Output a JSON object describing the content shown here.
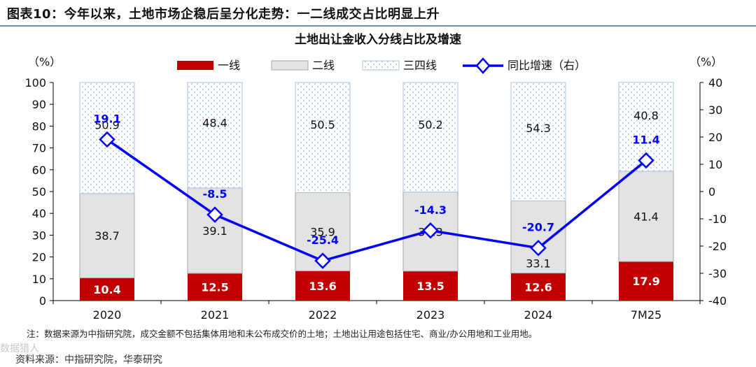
{
  "header": {
    "figure_label": "图表10：",
    "title": "今年以来，土地市场企稳后呈分化走势：一二线成交占比明显上升"
  },
  "chart_data": {
    "type": "bar",
    "stacked": true,
    "title": "土地出让金收入分线占比及增速",
    "categories": [
      "2020",
      "2021",
      "2022",
      "2023",
      "2024",
      "7M25"
    ],
    "series": [
      {
        "name": "一线",
        "values": [
          10.4,
          12.5,
          13.6,
          13.5,
          12.6,
          17.9
        ],
        "color": "#c00000",
        "pattern": "solid"
      },
      {
        "name": "二线",
        "values": [
          38.7,
          39.1,
          35.9,
          36.3,
          33.1,
          41.4
        ],
        "color": "#e3e3e3",
        "pattern": "solid"
      },
      {
        "name": "三四线",
        "values": [
          50.9,
          48.4,
          50.5,
          50.2,
          54.3,
          40.8
        ],
        "color": "#8fb6dc",
        "pattern": "dots"
      }
    ],
    "line_series": {
      "name": "同比增速（右）",
      "values": [
        19.1,
        -8.5,
        -25.4,
        -14.3,
        -20.7,
        11.4
      ],
      "color": "#0000ff",
      "marker": "diamond",
      "axis": "right"
    },
    "y_left": {
      "label": "（%）",
      "ylim": [
        0,
        100
      ],
      "ticks": [
        0,
        10,
        20,
        30,
        40,
        50,
        60,
        70,
        80,
        90,
        100
      ]
    },
    "y_right": {
      "label": "（%）",
      "ylim": [
        -40,
        40
      ],
      "ticks": [
        40,
        30,
        20,
        10,
        0,
        -10,
        -20,
        -30,
        -40
      ]
    },
    "legend_position": "top-center",
    "grid": false
  },
  "note": "注：数据来源为中指研究院，成交金额不包括集体用地和未公布成交价的土地；土地出让用途包括住宅、商业/办公用地和工业用地。",
  "source": "资料来源：中指研究院，华泰研究",
  "watermark": "数据猎人"
}
